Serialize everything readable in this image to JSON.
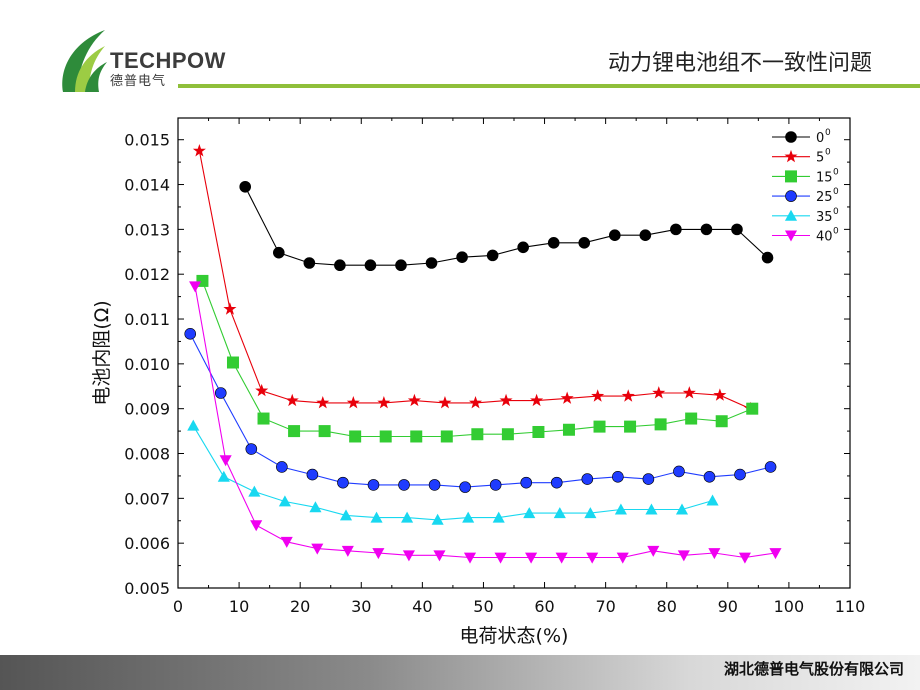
{
  "header": {
    "logo_text": "TECHPOW",
    "logo_subtext": "德普电气",
    "title": "动力锂电池组不一致性问题"
  },
  "footer": {
    "company": "湖北德普电气股份有限公司"
  },
  "colors": {
    "header_rule": "#8fbf3a",
    "logo_leaf_dark": "#2e8b3a",
    "logo_leaf_light": "#9ccc44"
  },
  "chart_data": {
    "type": "line",
    "title": "",
    "xlabel": "电荷状态(%)",
    "ylabel": "电池内阻(Ω)",
    "xlim": [
      0,
      110
    ],
    "ylim": [
      0.005,
      0.0155
    ],
    "xticks": [
      "0",
      "10",
      "20",
      "30",
      "40",
      "50",
      "60",
      "70",
      "80",
      "90",
      "100",
      "110"
    ],
    "yticks": [
      "0.005",
      "0.006",
      "0.007",
      "0.008",
      "0.009",
      "0.010",
      "0.011",
      "0.012",
      "0.013",
      "0.014",
      "0.015"
    ],
    "grid": false,
    "legend": "top-right",
    "series": [
      {
        "name": "0",
        "superscript": "0",
        "marker": "circle",
        "color": "#000000",
        "x": [
          11,
          16.5,
          21.5,
          26.5,
          31.5,
          36.5,
          41.5,
          46.5,
          51.5,
          56.5,
          61.5,
          66.5,
          71.5,
          76.5,
          81.5,
          86.5,
          91.5,
          96.5
        ],
        "y": [
          0.01395,
          0.01248,
          0.01225,
          0.0122,
          0.0122,
          0.0122,
          0.01225,
          0.01238,
          0.01242,
          0.0126,
          0.0127,
          0.0127,
          0.01287,
          0.01287,
          0.013,
          0.013,
          0.013,
          0.01237
        ]
      },
      {
        "name": "5",
        "superscript": "0",
        "marker": "star",
        "color": "#e8000b",
        "x": [
          3.5,
          8.5,
          13.7,
          18.7,
          23.7,
          28.7,
          33.7,
          38.7,
          43.7,
          48.7,
          53.7,
          58.7,
          63.7,
          68.7,
          73.7,
          78.7,
          83.7,
          88.7,
          93.7
        ],
        "y": [
          0.01475,
          0.01122,
          0.0094,
          0.00918,
          0.00913,
          0.00913,
          0.00913,
          0.00918,
          0.00913,
          0.00913,
          0.00918,
          0.00918,
          0.00923,
          0.00928,
          0.00928,
          0.00935,
          0.00935,
          0.0093,
          0.009
        ]
      },
      {
        "name": "15",
        "superscript": "0",
        "marker": "square",
        "color": "#33cc33",
        "x": [
          4,
          9,
          14,
          19,
          24,
          29,
          34,
          39,
          44,
          49,
          54,
          59,
          64,
          69,
          74,
          79,
          84,
          89,
          94
        ],
        "y": [
          0.01185,
          0.01003,
          0.00878,
          0.0085,
          0.0085,
          0.00838,
          0.00838,
          0.00838,
          0.00838,
          0.00843,
          0.00843,
          0.00848,
          0.00853,
          0.0086,
          0.0086,
          0.00865,
          0.00878,
          0.00872,
          0.009
        ]
      },
      {
        "name": "25",
        "superscript": "0",
        "marker": "circle",
        "color": "#1f3cff",
        "x": [
          2,
          7,
          12,
          17,
          22,
          27,
          32,
          37,
          42,
          47,
          52,
          57,
          62,
          67,
          72,
          77,
          82,
          87,
          92,
          97
        ],
        "y": [
          0.01067,
          0.00935,
          0.0081,
          0.0077,
          0.00753,
          0.00735,
          0.0073,
          0.0073,
          0.0073,
          0.00725,
          0.0073,
          0.00735,
          0.00735,
          0.00743,
          0.00748,
          0.00743,
          0.0076,
          0.00748,
          0.00753,
          0.0077
        ]
      },
      {
        "name": "35",
        "superscript": "0",
        "marker": "triangle-up",
        "color": "#18d8f0",
        "x": [
          2.5,
          7.5,
          12.5,
          17.5,
          22.5,
          27.5,
          32.5,
          37.5,
          42.5,
          47.5,
          52.5,
          57.5,
          62.5,
          67.5,
          72.5,
          77.5,
          82.5,
          87.5
        ],
        "y": [
          0.00862,
          0.00748,
          0.00715,
          0.00693,
          0.0068,
          0.00662,
          0.00657,
          0.00657,
          0.00652,
          0.00657,
          0.00657,
          0.00667,
          0.00667,
          0.00667,
          0.00675,
          0.00675,
          0.00675,
          0.00695
        ]
      },
      {
        "name": "40",
        "superscript": "0",
        "marker": "triangle-down",
        "color": "#f000f0",
        "x": [
          2.8,
          7.8,
          12.8,
          17.8,
          22.8,
          27.8,
          32.8,
          37.8,
          42.8,
          47.8,
          52.8,
          57.8,
          62.8,
          67.8,
          72.8,
          77.8,
          82.8,
          87.8,
          92.8,
          97.8
        ],
        "y": [
          0.01173,
          0.00785,
          0.0064,
          0.00603,
          0.00588,
          0.00583,
          0.00578,
          0.00573,
          0.00573,
          0.00568,
          0.00568,
          0.00568,
          0.00568,
          0.00568,
          0.00568,
          0.00583,
          0.00573,
          0.00578,
          0.00568,
          0.00578
        ]
      }
    ]
  }
}
